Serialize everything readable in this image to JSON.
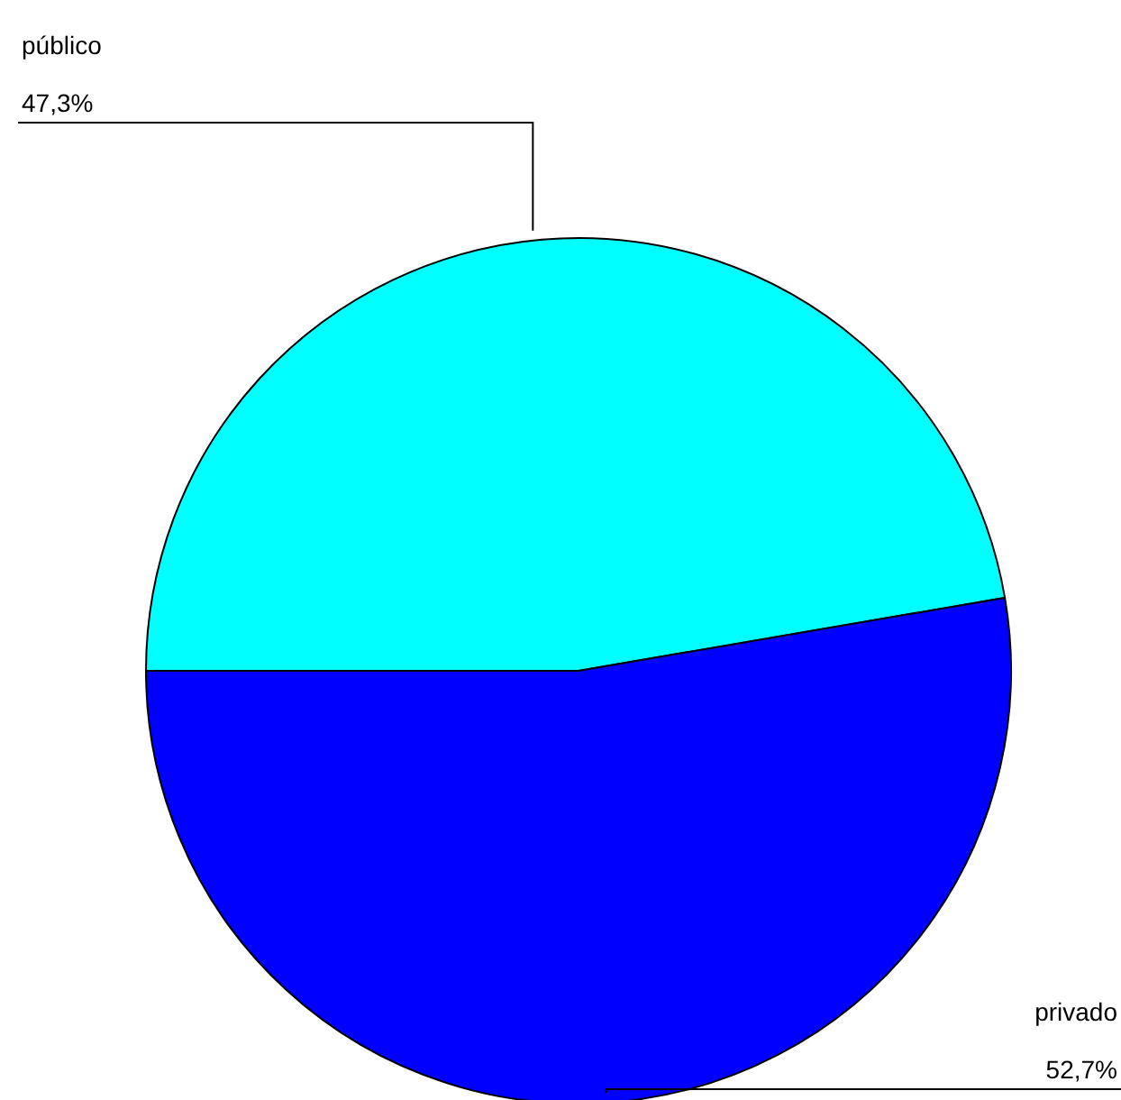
{
  "chart_data": {
    "type": "pie",
    "categories": [
      "público",
      "privado"
    ],
    "values": [
      47.3,
      52.7
    ],
    "colors": [
      "#00ffff",
      "#0000ff"
    ],
    "value_labels": [
      "47,3%",
      "52,7%"
    ]
  }
}
